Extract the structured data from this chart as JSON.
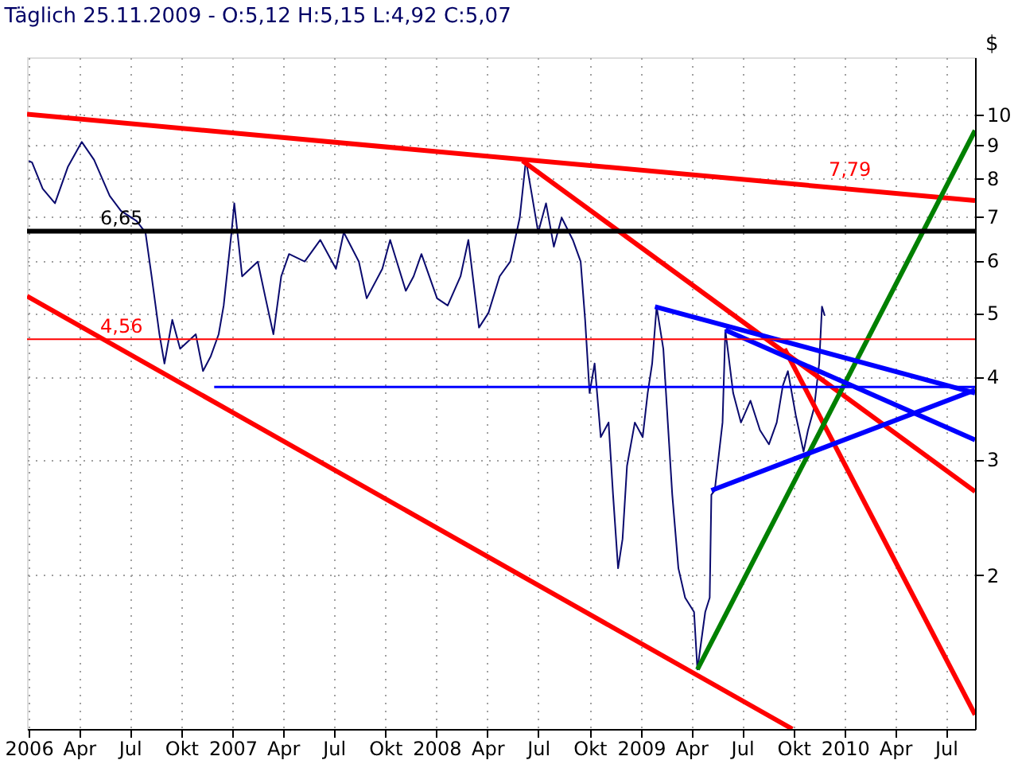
{
  "chart_data": {
    "type": "line",
    "title": "Täglich 25.11.2009 - O:5,12 H:5,15 L:4,92 C:5,07",
    "ylabel": "$",
    "xlim": [
      "2005-12-29",
      "2010-08-22"
    ],
    "xticks": [
      {
        "value": "2006-01-01",
        "label": "2006"
      },
      {
        "value": "2006-04-01",
        "label": "Apr"
      },
      {
        "value": "2006-07-01",
        "label": "Jul"
      },
      {
        "value": "2006-10-01",
        "label": "Okt"
      },
      {
        "value": "2007-01-01",
        "label": "2007"
      },
      {
        "value": "2007-04-01",
        "label": "Apr"
      },
      {
        "value": "2007-07-01",
        "label": "Jul"
      },
      {
        "value": "2007-10-01",
        "label": "Okt"
      },
      {
        "value": "2008-01-01",
        "label": "2008"
      },
      {
        "value": "2008-04-01",
        "label": "Apr"
      },
      {
        "value": "2008-07-01",
        "label": "Jul"
      },
      {
        "value": "2008-10-01",
        "label": "Okt"
      },
      {
        "value": "2009-01-01",
        "label": "2009"
      },
      {
        "value": "2009-04-01",
        "label": "Apr"
      },
      {
        "value": "2009-07-01",
        "label": "Jul"
      },
      {
        "value": "2009-10-01",
        "label": "Okt"
      },
      {
        "value": "2010-01-01",
        "label": "2010"
      },
      {
        "value": "2010-04-01",
        "label": "Apr"
      },
      {
        "value": "2010-07-01",
        "label": "Jul"
      }
    ],
    "ylim": [
      1.17,
      12.2
    ],
    "yticks": [
      2,
      3,
      4,
      5,
      6,
      7,
      8,
      9,
      10
    ],
    "log": true,
    "grid": true,
    "series": [
      {
        "color": "#0a0a6e",
        "x": [
          "2006-01-01",
          "2006-01-07",
          "2006-01-26",
          "2006-02-17",
          "2006-03-12",
          "2006-04-06",
          "2006-04-28",
          "2006-05-26",
          "2006-06-15",
          "2006-07-13",
          "2006-07-29",
          "2006-08-09",
          "2006-08-23",
          "2006-09-01",
          "2006-09-15",
          "2006-09-29",
          "2006-10-27",
          "2006-11-09",
          "2006-11-23",
          "2006-12-07",
          "2006-12-16",
          "2006-12-30",
          "2007-01-04",
          "2007-01-18",
          "2007-02-15",
          "2007-03-01",
          "2007-03-15",
          "2007-03-29",
          "2007-04-12",
          "2007-05-10",
          "2007-06-07",
          "2007-07-05",
          "2007-07-19",
          "2007-08-15",
          "2007-08-29",
          "2007-09-26",
          "2007-10-10",
          "2007-11-07",
          "2007-11-21",
          "2007-12-05",
          "2008-01-02",
          "2008-01-21",
          "2008-02-13",
          "2008-02-27",
          "2008-03-17",
          "2008-04-03",
          "2008-04-23",
          "2008-05-12",
          "2008-05-29",
          "2008-06-09",
          "2008-06-20",
          "2008-07-01",
          "2008-07-15",
          "2008-07-29",
          "2008-08-12",
          "2008-09-01",
          "2008-09-15",
          "2008-09-23",
          "2008-10-01",
          "2008-10-10",
          "2008-10-21",
          "2008-11-04",
          "2008-11-12",
          "2008-11-21",
          "2008-11-29",
          "2008-12-07",
          "2008-12-21",
          "2009-01-04",
          "2009-01-13",
          "2009-01-21",
          "2009-01-29",
          "2009-02-10",
          "2009-02-18",
          "2009-02-26",
          "2009-03-09",
          "2009-03-21",
          "2009-04-06",
          "2009-04-12",
          "2009-04-26",
          "2009-05-04",
          "2009-05-07",
          "2009-05-13",
          "2009-05-18",
          "2009-05-27",
          "2009-06-01",
          "2009-06-15",
          "2009-06-29",
          "2009-07-16",
          "2009-08-02",
          "2009-08-18",
          "2009-09-01",
          "2009-09-12",
          "2009-09-21",
          "2009-10-05",
          "2009-10-19",
          "2009-10-27",
          "2009-11-07",
          "2009-11-16",
          "2009-11-21",
          "2009-11-26"
        ],
        "values": [
          8.5,
          8.45,
          7.71,
          7.33,
          8.32,
          9.08,
          8.53,
          7.52,
          7.14,
          6.89,
          6.62,
          5.68,
          4.64,
          4.19,
          4.88,
          4.41,
          4.64,
          4.08,
          4.3,
          4.64,
          5.13,
          6.62,
          7.33,
          5.68,
          5.98,
          5.26,
          4.64,
          5.68,
          6.14,
          5.98,
          6.45,
          5.83,
          6.62,
          5.98,
          5.26,
          5.83,
          6.45,
          5.4,
          5.68,
          6.14,
          5.26,
          5.13,
          5.68,
          6.45,
          4.75,
          5.0,
          5.68,
          5.98,
          6.97,
          8.53,
          7.52,
          6.62,
          7.33,
          6.3,
          6.97,
          6.45,
          5.98,
          4.88,
          3.78,
          4.19,
          3.24,
          3.41,
          2.65,
          2.05,
          2.27,
          2.93,
          3.41,
          3.24,
          3.78,
          4.19,
          5.11,
          4.41,
          3.41,
          2.65,
          2.05,
          1.85,
          1.76,
          1.44,
          1.76,
          1.85,
          2.65,
          2.69,
          2.93,
          3.41,
          4.71,
          3.78,
          3.41,
          3.68,
          3.32,
          3.16,
          3.41,
          3.88,
          4.08,
          3.5,
          3.08,
          3.32,
          3.59,
          4.19,
          5.11,
          4.95
        ]
      },
      {
        "type": "line",
        "color": "#ff0000",
        "x": [
          "2005-12-29",
          "2010-08-22"
        ],
        "values": [
          10.0,
          7.4
        ]
      },
      {
        "type": "line",
        "color": "#ff0000",
        "x": [
          "2008-06-03",
          "2010-08-22"
        ],
        "values": [
          8.5,
          2.68
        ]
      },
      {
        "type": "line",
        "color": "#ff0000",
        "x": [
          "2005-12-29",
          "2009-09-29"
        ],
        "values": [
          5.3,
          1.17
        ]
      },
      {
        "type": "line",
        "color": "#ff0000",
        "x": [
          "2009-09-15",
          "2010-08-22"
        ],
        "values": [
          4.41,
          1.23
        ]
      },
      {
        "type": "line",
        "color": "#008000",
        "x": [
          "2009-04-12",
          "2010-08-22"
        ],
        "values": [
          1.44,
          9.45
        ]
      },
      {
        "type": "line",
        "color": "#0000ff",
        "x": [
          "2009-01-26",
          "2010-08-22"
        ],
        "values": [
          5.11,
          3.78
        ]
      },
      {
        "type": "line",
        "color": "#0000ff",
        "x": [
          "2009-06-01",
          "2010-08-22"
        ],
        "values": [
          4.71,
          3.21
        ]
      },
      {
        "type": "line",
        "color": "#0000ff",
        "x": [
          "2009-05-07",
          "2010-08-22"
        ],
        "values": [
          2.69,
          3.82
        ]
      },
      {
        "type": "line",
        "color": "#0000ff",
        "x": [
          "2006-11-29",
          "2010-08-22"
        ],
        "values": [
          3.86,
          3.86
        ]
      }
    ],
    "ref_lines": [
      {
        "axis": "y",
        "value": 6.65,
        "label": "6,65",
        "color": "#000000"
      },
      {
        "axis": "y",
        "value": 4.56,
        "label": "4,56",
        "color": "#ff0000"
      }
    ],
    "annotations": [
      {
        "text": "7,79",
        "x": "2010-01-10",
        "y": 7.79
      }
    ]
  }
}
